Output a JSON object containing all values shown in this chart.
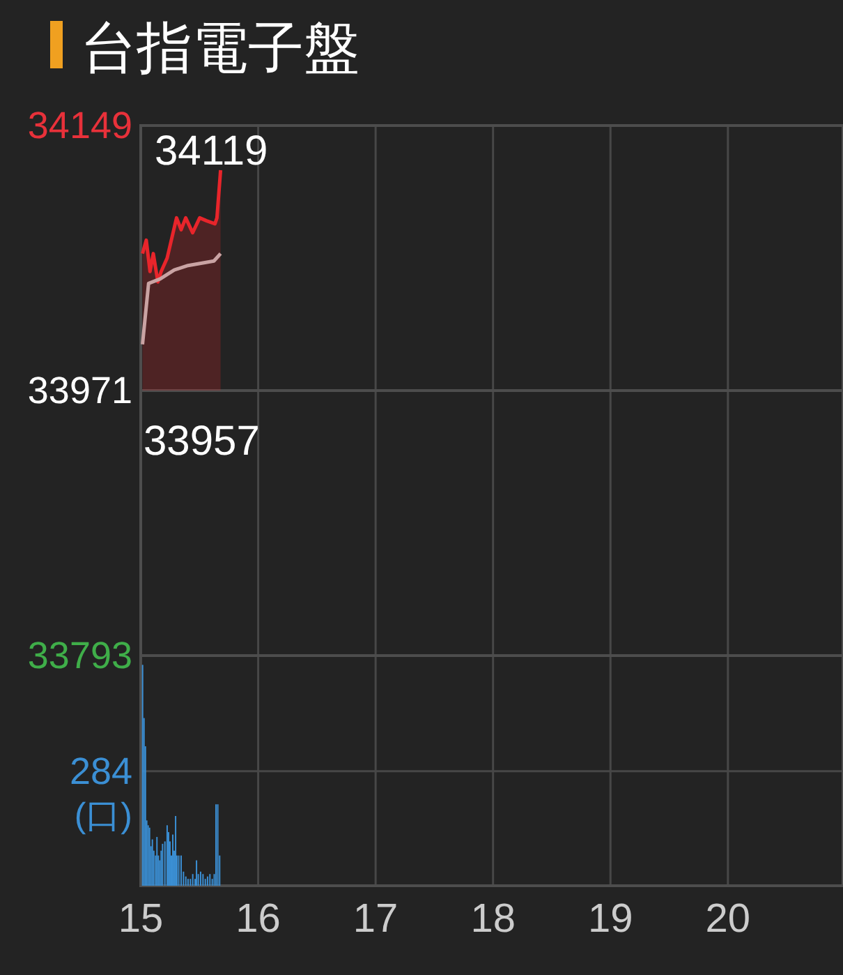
{
  "chart_data": [
    {
      "type": "line",
      "title": "台指電子盤",
      "xlim": [
        15,
        20.98
      ],
      "xticks": [
        15,
        16,
        17,
        18,
        19,
        20
      ],
      "ylim": [
        33793,
        34149
      ],
      "yticks": [
        33793,
        33971,
        34149
      ],
      "tick_labels": "y",
      "grid": true,
      "ref_lines": [
        {
          "axis": "y",
          "value": 33971
        }
      ],
      "annotations": [
        "34119",
        "33957"
      ],
      "series": [
        {
          "type": "area",
          "color": "#e8252b",
          "x": [
            15.015,
            15.047,
            15.079,
            15.107,
            15.146,
            15.174,
            15.225,
            15.305,
            15.344,
            15.383,
            15.442,
            15.502,
            15.561,
            15.632,
            15.649,
            15.68
          ],
          "values": [
            34063,
            34072,
            34051,
            34063,
            34044,
            34051,
            34060,
            34087,
            34079,
            34087,
            34077,
            34087,
            34085,
            34083,
            34087,
            34119
          ]
        },
        {
          "type": "line",
          "color": "#c9a3a3",
          "x": [
            15.015,
            15.067,
            15.166,
            15.285,
            15.403,
            15.623,
            15.68
          ],
          "values": [
            34002,
            34043,
            34046,
            34052,
            34055,
            34058,
            34063
          ]
        }
      ]
    },
    {
      "type": "bar",
      "xlim": [
        15,
        20.98
      ],
      "xticks": [
        15,
        16,
        17,
        18,
        19,
        20
      ],
      "ylim": [
        0,
        571
      ],
      "yticks": [
        284
      ],
      "ylabel": "(口)",
      "grid": true,
      "series": [
        {
          "color": "#3b8fd4",
          "x": [
            15.016,
            15.028,
            15.04,
            15.051,
            15.063,
            15.075,
            15.087,
            15.099,
            15.111,
            15.127,
            15.138,
            15.15,
            15.162,
            15.174,
            15.186,
            15.206,
            15.225,
            15.237,
            15.249,
            15.261,
            15.273,
            15.285,
            15.297,
            15.308,
            15.324,
            15.344,
            15.364,
            15.384,
            15.403,
            15.423,
            15.443,
            15.463,
            15.475,
            15.49,
            15.51,
            15.53,
            15.55,
            15.569,
            15.589,
            15.609,
            15.626,
            15.641,
            15.656,
            15.672
          ],
          "values": [
            548,
            416,
            346,
            162,
            150,
            144,
            98,
            115,
            87,
            75,
            121,
            75,
            63,
            87,
            104,
            110,
            150,
            133,
            110,
            75,
            127,
            87,
            173,
            75,
            75,
            75,
            35,
            23,
            17,
            17,
            29,
            17,
            63,
            29,
            35,
            29,
            17,
            23,
            29,
            17,
            29,
            202,
            202,
            75
          ]
        }
      ]
    }
  ]
}
